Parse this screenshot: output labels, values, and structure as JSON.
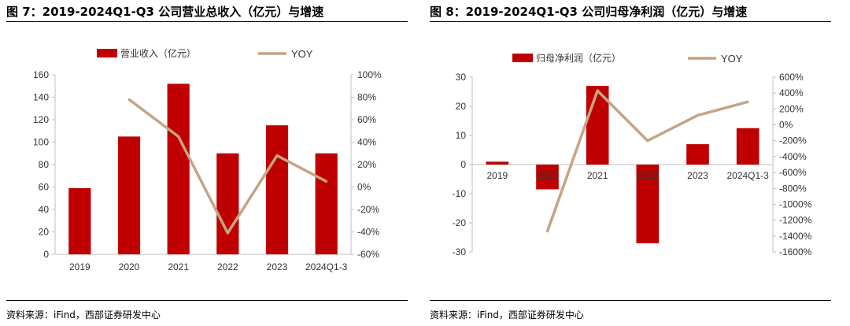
{
  "colors": {
    "bar": "#C00000",
    "line": "#C4A484",
    "axis": "#BFBFBF"
  },
  "charts": [
    {
      "title": "图 7：2019-2024Q1-Q3 公司营业总收入（亿元）与增速",
      "source": "资料来源：iFind，西部证券研发中心"
    },
    {
      "title": "图 8：2019-2024Q1-Q3 公司归母净利润（亿元）与增速",
      "source": "资料来源：iFind，西部证券研发中心"
    }
  ],
  "chart_data": [
    {
      "type": "bar",
      "title": "图 7：2019-2024Q1-Q3 公司营业总收入（亿元）与增速",
      "categories": [
        "2019",
        "2020",
        "2021",
        "2022",
        "2023",
        "2024Q1-3"
      ],
      "series": [
        {
          "name": "营业收入（亿元）",
          "type": "bar",
          "axis": "left",
          "values": [
            59,
            105,
            152,
            90,
            115,
            90
          ]
        },
        {
          "name": "YOY",
          "type": "line",
          "axis": "right",
          "values": [
            null,
            0.78,
            0.45,
            -0.41,
            0.28,
            0.05
          ]
        }
      ],
      "ylim": [
        0,
        160
      ],
      "yticks": [
        0,
        20,
        40,
        60,
        80,
        100,
        120,
        140,
        160
      ],
      "y2lim": [
        -0.6,
        1.0
      ],
      "y2ticks": [
        "-60%",
        "-40%",
        "-20%",
        "0%",
        "20%",
        "40%",
        "60%",
        "80%",
        "100%"
      ],
      "legend": "top",
      "grid": false
    },
    {
      "type": "bar",
      "title": "图 8：2019-2024Q1-Q3 公司归母净利润（亿元）与增速",
      "categories": [
        "2019",
        "2020",
        "2021",
        "2022",
        "2023",
        "2024Q1-3"
      ],
      "series": [
        {
          "name": "归母净利润（亿元）",
          "type": "bar",
          "axis": "left",
          "values": [
            1,
            -8.5,
            27,
            -27,
            7,
            12.5
          ]
        },
        {
          "name": "YOY",
          "type": "line",
          "axis": "right",
          "values": [
            null,
            -13.4,
            4.3,
            -2.0,
            1.2,
            2.9
          ]
        }
      ],
      "ylim": [
        -30,
        30
      ],
      "yticks": [
        -30,
        -20,
        -10,
        0,
        10,
        20,
        30
      ],
      "y2lim": [
        -16,
        6
      ],
      "y2ticks": [
        "-1600%",
        "-1400%",
        "-1200%",
        "-1000%",
        "-800%",
        "-600%",
        "-400%",
        "-200%",
        "0%",
        "200%",
        "400%",
        "600%"
      ],
      "legend": "top",
      "grid": false
    }
  ]
}
